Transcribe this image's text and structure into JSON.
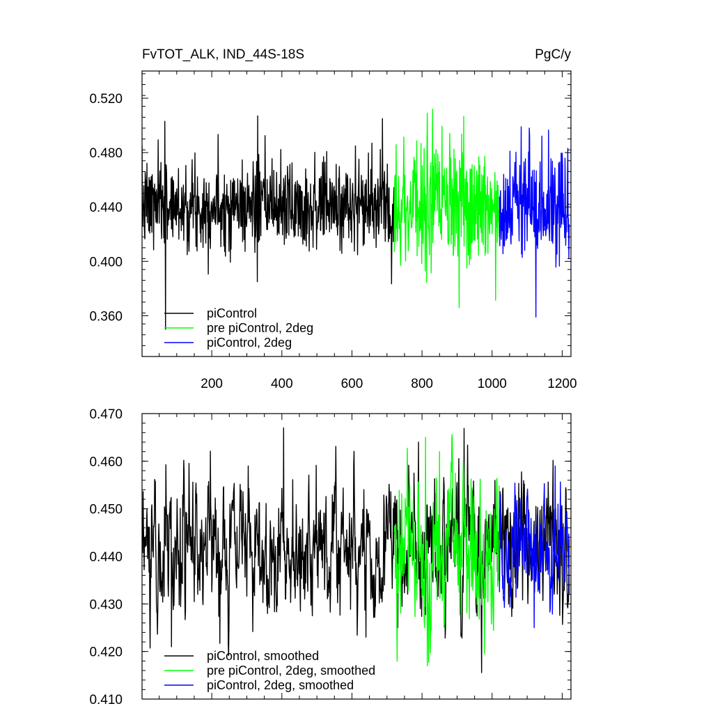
{
  "figure": {
    "title_left": "FvTOT_ALK, IND_44S-18S",
    "title_right": "PgC/y"
  },
  "series_colors": {
    "piControl": "#000000",
    "pre piControl, 2deg": "#00ff00",
    "piControl, 2deg": "#0000ff"
  },
  "chart_data": [
    {
      "type": "line",
      "title": "FvTOT_ALK, IND_44S-18S",
      "units": "PgC/y",
      "xlim": [
        1,
        1225
      ],
      "ylim": [
        0.33,
        0.54
      ],
      "x_ticks": [
        200,
        400,
        600,
        800,
        1000,
        1200
      ],
      "y_ticks": [
        0.36,
        0.4,
        0.44,
        0.48,
        0.52
      ],
      "y_tick_labels": [
        "0.360",
        "0.400",
        "0.440",
        "0.480",
        "0.520"
      ],
      "legend_position": "bottom-left",
      "series": [
        {
          "name": "piControl",
          "color": "#000000",
          "x_range": [
            1,
            720
          ],
          "mean": 0.441,
          "std": 0.016,
          "points": [
            [
              68,
              0.35
            ],
            [
              66,
              0.503
            ],
            [
              331,
              0.507
            ],
            [
              687,
              0.505
            ],
            [
              330,
              0.385
            ]
          ]
        },
        {
          "name": "pre piControl, 2deg",
          "color": "#00ff00",
          "x_range": [
            721,
            1020
          ],
          "mean": 0.441,
          "std": 0.022,
          "points": [
            [
              830,
              0.512
            ],
            [
              906,
              0.366
            ],
            [
              815,
              0.509
            ]
          ]
        },
        {
          "name": "piControl, 2deg",
          "color": "#0000ff",
          "x_range": [
            1021,
            1220
          ],
          "mean": 0.441,
          "std": 0.018,
          "points": [
            [
              1125,
              0.359
            ],
            [
              1083,
              0.499
            ],
            [
              1106,
              0.498
            ]
          ]
        }
      ]
    },
    {
      "type": "line",
      "xlim": [
        1,
        1225
      ],
      "ylim": [
        0.41,
        0.47
      ],
      "x_ticks": [
        200,
        400,
        600,
        800,
        1000,
        1200
      ],
      "y_ticks": [
        0.41,
        0.42,
        0.43,
        0.44,
        0.45,
        0.46,
        0.47
      ],
      "y_tick_labels": [
        "0.410",
        "0.420",
        "0.430",
        "0.440",
        "0.450",
        "0.460",
        "0.470"
      ],
      "legend_position": "bottom-left",
      "series": [
        {
          "name": "piControl, smoothed",
          "color": "#000000",
          "x_range": [
            1,
            1220
          ],
          "mean": 0.442,
          "std": 0.007,
          "points": [
            [
              405,
              0.467
            ],
            [
              85,
              0.421
            ],
            [
              790,
              0.464
            ],
            [
              640,
              0.423
            ]
          ]
        },
        {
          "name": "pre piControl, 2deg, smoothed",
          "color": "#00ff00",
          "x_range": [
            721,
            1020
          ],
          "mean": 0.441,
          "std": 0.008,
          "points": [
            [
              810,
              0.465
            ],
            [
              815,
              0.417
            ],
            [
              850,
              0.462
            ]
          ]
        },
        {
          "name": "piControl, 2deg, smoothed",
          "color": "#0000ff",
          "x_range": [
            1021,
            1220
          ],
          "mean": 0.442,
          "std": 0.006,
          "points": [
            [
              1120,
              0.425
            ],
            [
              1180,
              0.459
            ],
            [
              1220,
              0.432
            ]
          ]
        }
      ]
    }
  ]
}
